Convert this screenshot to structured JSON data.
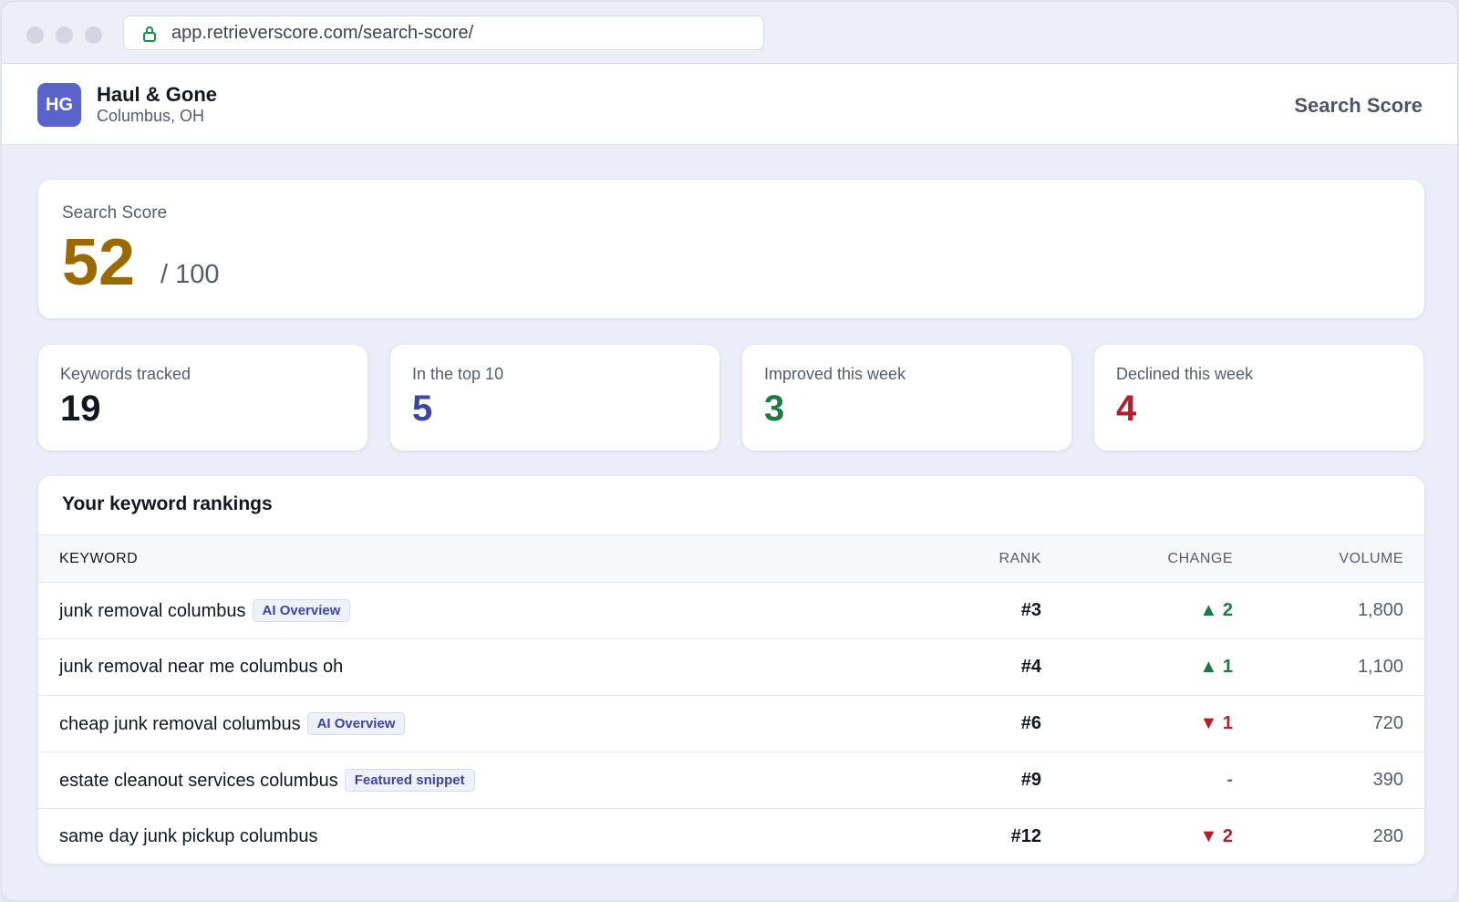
{
  "browser": {
    "url": "app.retrieverscore.com/search-score/"
  },
  "header": {
    "logo": "HG",
    "business": "Haul & Gone",
    "location": "Columbus, OH",
    "nav": "Search Score"
  },
  "score": {
    "label": "Search Score",
    "value": 52,
    "max_label": "/ 100",
    "color": "#9a6a00"
  },
  "stats": [
    {
      "label": "Keywords tracked",
      "value": 19,
      "color": "#14161f"
    },
    {
      "label": "In the top 10",
      "value": 5,
      "color": "#3d45a3"
    },
    {
      "label": "Improved this week",
      "value": 3,
      "color": "#1d7a45"
    },
    {
      "label": "Declined this week",
      "value": 4,
      "color": "#b0202e"
    }
  ],
  "table": {
    "title": "Your keyword rankings",
    "headers": [
      "KEYWORD",
      "RANK",
      "CHANGE",
      "VOLUME"
    ],
    "rows": [
      {
        "keyword": "junk removal columbus",
        "badge": "AI Overview",
        "rank": "#3",
        "change": "▲ 2",
        "change_color": "#1d7a45",
        "volume": "1,800"
      },
      {
        "keyword": "junk removal near me columbus oh",
        "rank": "#4",
        "change": "▲ 1",
        "change_color": "#1d7a45",
        "volume": "1,100"
      },
      {
        "keyword": "cheap junk removal columbus",
        "badge": "AI Overview",
        "rank": "#6",
        "change": "▼ 1",
        "change_color": "#b0202e",
        "volume": "720"
      },
      {
        "keyword": "estate cleanout services columbus",
        "badge": "Featured snippet",
        "rank": "#9",
        "change": "-",
        "change_color": "#6b7080",
        "volume": "390"
      },
      {
        "keyword": "same day junk pickup columbus",
        "rank": "#12",
        "change": "▼ 2",
        "change_color": "#b0202e",
        "volume": "280"
      }
    ]
  }
}
